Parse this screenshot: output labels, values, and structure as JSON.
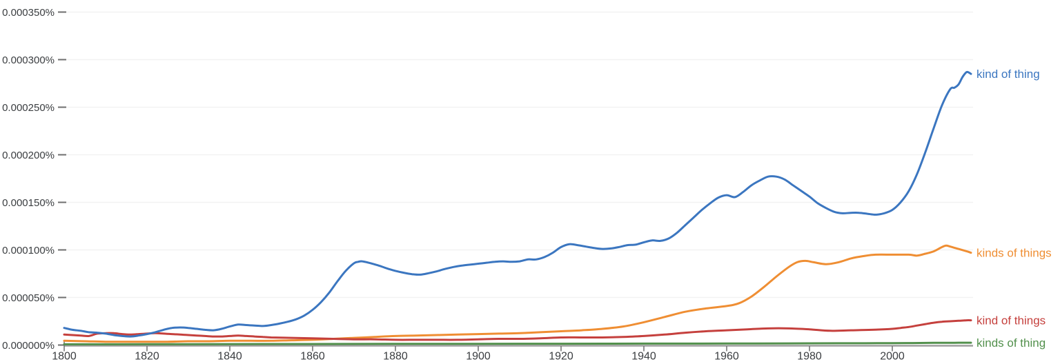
{
  "chart_data": {
    "type": "line",
    "title": "",
    "legend_position": "line-end-labels-right",
    "grid": true,
    "y_unit": "1e-6 percent of corpus",
    "x_axis": {
      "range": [
        1800,
        2019
      ],
      "ticks": [
        1800,
        1820,
        1840,
        1860,
        1880,
        1900,
        1920,
        1940,
        1960,
        1980,
        2000
      ]
    },
    "y_axis": {
      "range": [
        0,
        355
      ],
      "ticks": [
        {
          "value": 0,
          "label": "0.000000%"
        },
        {
          "value": 50,
          "label": "0.000050%"
        },
        {
          "value": 100,
          "label": "0.000100%"
        },
        {
          "value": 150,
          "label": "0.000150%"
        },
        {
          "value": 200,
          "label": "0.000200%"
        },
        {
          "value": 250,
          "label": "0.000250%"
        },
        {
          "value": 300,
          "label": "0.000300%"
        },
        {
          "value": 350,
          "label": "0.000350%"
        }
      ]
    },
    "colors": {
      "axis_line": "#9e9e9e",
      "grid_line": "#f2f2f2",
      "tick_mark": "#6e6e6e",
      "axis_text": "#3a3d40"
    },
    "series": [
      {
        "name": "kinds of thing",
        "color": "#52904c",
        "points": [
          [
            1800,
            0.8
          ],
          [
            1820,
            0.9
          ],
          [
            1840,
            1.0
          ],
          [
            1860,
            1.1
          ],
          [
            1880,
            1.2
          ],
          [
            1900,
            1.3
          ],
          [
            1920,
            1.4
          ],
          [
            1940,
            1.5
          ],
          [
            1960,
            1.6
          ],
          [
            1980,
            1.8
          ],
          [
            1990,
            1.9
          ],
          [
            2000,
            2.0
          ],
          [
            2005,
            2.1
          ],
          [
            2010,
            2.3
          ],
          [
            2015,
            2.4
          ],
          [
            2019,
            2.5
          ]
        ]
      },
      {
        "name": "kinds of things",
        "color": "#ef8e33",
        "points": [
          [
            1800,
            4.5
          ],
          [
            1805,
            4
          ],
          [
            1810,
            3.5
          ],
          [
            1815,
            3.5
          ],
          [
            1820,
            3.5
          ],
          [
            1825,
            3.5
          ],
          [
            1830,
            4
          ],
          [
            1835,
            4
          ],
          [
            1840,
            4.5
          ],
          [
            1845,
            4.5
          ],
          [
            1850,
            4.5
          ],
          [
            1855,
            5
          ],
          [
            1860,
            5.5
          ],
          [
            1865,
            6.5
          ],
          [
            1870,
            7.5
          ],
          [
            1875,
            8.5
          ],
          [
            1880,
            9.5
          ],
          [
            1885,
            10
          ],
          [
            1890,
            10.5
          ],
          [
            1895,
            11
          ],
          [
            1900,
            11.5
          ],
          [
            1905,
            12
          ],
          [
            1910,
            12.5
          ],
          [
            1915,
            13.5
          ],
          [
            1920,
            14.5
          ],
          [
            1925,
            15.5
          ],
          [
            1930,
            17
          ],
          [
            1935,
            19.5
          ],
          [
            1940,
            24
          ],
          [
            1945,
            29.5
          ],
          [
            1950,
            35
          ],
          [
            1955,
            38.5
          ],
          [
            1960,
            41
          ],
          [
            1963,
            44
          ],
          [
            1966,
            51
          ],
          [
            1969,
            61
          ],
          [
            1972,
            72
          ],
          [
            1975,
            82
          ],
          [
            1977,
            87
          ],
          [
            1979,
            88.5
          ],
          [
            1981,
            87
          ],
          [
            1984,
            85
          ],
          [
            1987,
            87
          ],
          [
            1990,
            91
          ],
          [
            1993,
            93.5
          ],
          [
            1996,
            95
          ],
          [
            2000,
            95
          ],
          [
            2004,
            95
          ],
          [
            2006,
            94
          ],
          [
            2008,
            96
          ],
          [
            2010,
            98.5
          ],
          [
            2012,
            103
          ],
          [
            2013,
            104.5
          ],
          [
            2014,
            103.5
          ],
          [
            2016,
            101
          ],
          [
            2018,
            98.5
          ],
          [
            2019,
            97
          ]
        ]
      },
      {
        "name": "kind of things",
        "color": "#c5403d",
        "points": [
          [
            1800,
            11
          ],
          [
            1802,
            10.5
          ],
          [
            1804,
            10
          ],
          [
            1806,
            9.5
          ],
          [
            1808,
            12
          ],
          [
            1810,
            12.5
          ],
          [
            1812,
            12.5
          ],
          [
            1814,
            11.5
          ],
          [
            1816,
            11
          ],
          [
            1818,
            11.5
          ],
          [
            1820,
            12
          ],
          [
            1822,
            12.5
          ],
          [
            1824,
            12
          ],
          [
            1826,
            11.5
          ],
          [
            1828,
            11
          ],
          [
            1830,
            10.5
          ],
          [
            1832,
            10
          ],
          [
            1834,
            9.5
          ],
          [
            1836,
            9
          ],
          [
            1838,
            9
          ],
          [
            1840,
            9.5
          ],
          [
            1842,
            10
          ],
          [
            1844,
            9.5
          ],
          [
            1846,
            9
          ],
          [
            1848,
            8.5
          ],
          [
            1850,
            8
          ],
          [
            1855,
            7.5
          ],
          [
            1860,
            7
          ],
          [
            1865,
            6.5
          ],
          [
            1870,
            6
          ],
          [
            1875,
            6
          ],
          [
            1880,
            5.5
          ],
          [
            1885,
            5.5
          ],
          [
            1890,
            5.5
          ],
          [
            1895,
            5.5
          ],
          [
            1900,
            6
          ],
          [
            1905,
            6.5
          ],
          [
            1910,
            6.5
          ],
          [
            1915,
            7
          ],
          [
            1920,
            8
          ],
          [
            1925,
            8
          ],
          [
            1930,
            8
          ],
          [
            1935,
            8.5
          ],
          [
            1940,
            9.5
          ],
          [
            1945,
            11
          ],
          [
            1950,
            13
          ],
          [
            1955,
            14.5
          ],
          [
            1960,
            15.5
          ],
          [
            1965,
            16.5
          ],
          [
            1970,
            17.5
          ],
          [
            1975,
            17.5
          ],
          [
            1980,
            16.5
          ],
          [
            1985,
            15
          ],
          [
            1990,
            15.5
          ],
          [
            1995,
            16
          ],
          [
            2000,
            17
          ],
          [
            2002,
            18
          ],
          [
            2004,
            19
          ],
          [
            2006,
            20.5
          ],
          [
            2008,
            22
          ],
          [
            2010,
            23.5
          ],
          [
            2012,
            24.5
          ],
          [
            2014,
            25
          ],
          [
            2016,
            25.5
          ],
          [
            2018,
            26
          ],
          [
            2019,
            26
          ]
        ]
      },
      {
        "name": "kind of thing",
        "color": "#3b76c0",
        "points": [
          [
            1800,
            18
          ],
          [
            1802,
            16
          ],
          [
            1804,
            15
          ],
          [
            1806,
            13.5
          ],
          [
            1808,
            13
          ],
          [
            1810,
            12
          ],
          [
            1812,
            10.5
          ],
          [
            1814,
            9.5
          ],
          [
            1816,
            9
          ],
          [
            1818,
            10
          ],
          [
            1820,
            11.5
          ],
          [
            1822,
            13.5
          ],
          [
            1824,
            16
          ],
          [
            1826,
            18
          ],
          [
            1828,
            18.5
          ],
          [
            1830,
            18
          ],
          [
            1832,
            17
          ],
          [
            1834,
            16
          ],
          [
            1836,
            15.5
          ],
          [
            1838,
            17
          ],
          [
            1840,
            19.5
          ],
          [
            1842,
            21.5
          ],
          [
            1844,
            21
          ],
          [
            1846,
            20.5
          ],
          [
            1848,
            20
          ],
          [
            1850,
            21
          ],
          [
            1852,
            22.5
          ],
          [
            1854,
            24.5
          ],
          [
            1856,
            27
          ],
          [
            1858,
            31
          ],
          [
            1860,
            37
          ],
          [
            1862,
            45
          ],
          [
            1864,
            55
          ],
          [
            1866,
            67
          ],
          [
            1868,
            78
          ],
          [
            1870,
            86
          ],
          [
            1871,
            87.5
          ],
          [
            1872,
            88
          ],
          [
            1874,
            86
          ],
          [
            1876,
            83.5
          ],
          [
            1878,
            80.5
          ],
          [
            1880,
            78
          ],
          [
            1882,
            76
          ],
          [
            1884,
            74.5
          ],
          [
            1886,
            74
          ],
          [
            1888,
            75.5
          ],
          [
            1890,
            77.5
          ],
          [
            1892,
            80
          ],
          [
            1894,
            82
          ],
          [
            1896,
            83.5
          ],
          [
            1898,
            84.5
          ],
          [
            1900,
            85.5
          ],
          [
            1902,
            86.5
          ],
          [
            1904,
            87.5
          ],
          [
            1906,
            88
          ],
          [
            1908,
            87.5
          ],
          [
            1910,
            88
          ],
          [
            1912,
            90
          ],
          [
            1914,
            90
          ],
          [
            1916,
            92.5
          ],
          [
            1918,
            97
          ],
          [
            1920,
            103
          ],
          [
            1922,
            106
          ],
          [
            1924,
            105
          ],
          [
            1926,
            103.5
          ],
          [
            1928,
            102
          ],
          [
            1930,
            101
          ],
          [
            1932,
            101.5
          ],
          [
            1934,
            103
          ],
          [
            1936,
            105
          ],
          [
            1938,
            105.5
          ],
          [
            1940,
            108
          ],
          [
            1942,
            110
          ],
          [
            1944,
            109.5
          ],
          [
            1946,
            112
          ],
          [
            1948,
            118
          ],
          [
            1950,
            126
          ],
          [
            1952,
            134
          ],
          [
            1954,
            142
          ],
          [
            1956,
            149
          ],
          [
            1958,
            155
          ],
          [
            1960,
            157.5
          ],
          [
            1962,
            155.5
          ],
          [
            1964,
            161
          ],
          [
            1966,
            168
          ],
          [
            1968,
            173
          ],
          [
            1970,
            177
          ],
          [
            1972,
            177
          ],
          [
            1974,
            174
          ],
          [
            1976,
            168
          ],
          [
            1978,
            162
          ],
          [
            1980,
            156
          ],
          [
            1982,
            149
          ],
          [
            1984,
            144
          ],
          [
            1986,
            140
          ],
          [
            1988,
            138.5
          ],
          [
            1990,
            139
          ],
          [
            1992,
            139
          ],
          [
            1994,
            138
          ],
          [
            1996,
            137
          ],
          [
            1998,
            138.5
          ],
          [
            2000,
            142
          ],
          [
            2002,
            150
          ],
          [
            2004,
            162
          ],
          [
            2006,
            180
          ],
          [
            2008,
            203
          ],
          [
            2010,
            228
          ],
          [
            2012,
            252
          ],
          [
            2014,
            269
          ],
          [
            2015,
            270.5
          ],
          [
            2016,
            274
          ],
          [
            2017,
            282
          ],
          [
            2018,
            287
          ],
          [
            2019,
            285
          ]
        ]
      }
    ]
  }
}
